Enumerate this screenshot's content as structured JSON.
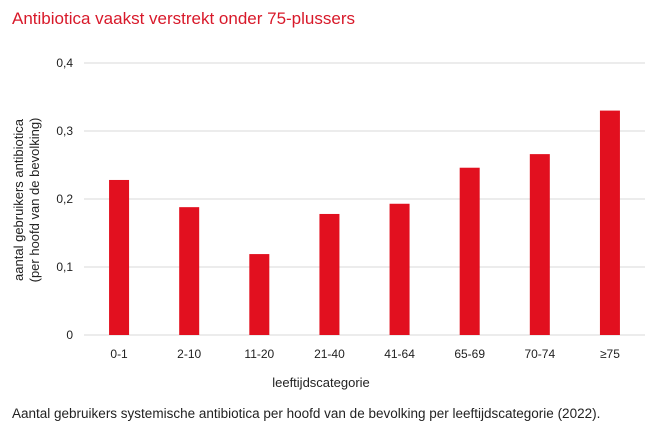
{
  "title": "Antibiotica vaakst verstrekt onder 75-plussers",
  "caption": "Aantal gebruikers systemische antibiotica per hoofd van de bevolking per leeftijdscategorie (2022).",
  "chart_data": {
    "type": "bar",
    "categories": [
      "0-1",
      "2-10",
      "11-20",
      "21-40",
      "41-64",
      "65-69",
      "70-74",
      "≥75"
    ],
    "values": [
      0.228,
      0.188,
      0.119,
      0.178,
      0.193,
      0.246,
      0.266,
      0.33
    ],
    "xlabel": "leeftijdscategorie",
    "ylabel_lines": [
      "aantal gebruikers antibiotica",
      "(per hoofd van de bevolking)"
    ],
    "ylim": [
      0,
      0.4
    ],
    "yticks": [
      0,
      0.1,
      0.2,
      0.3,
      0.4
    ],
    "ytick_labels": [
      "0",
      "0,1",
      "0,2",
      "0,3",
      "0,4"
    ],
    "grid": "horizontal",
    "bar_color": "#e2101f",
    "grid_color": "#d9d9d9",
    "title_color": "#d8192a"
  }
}
